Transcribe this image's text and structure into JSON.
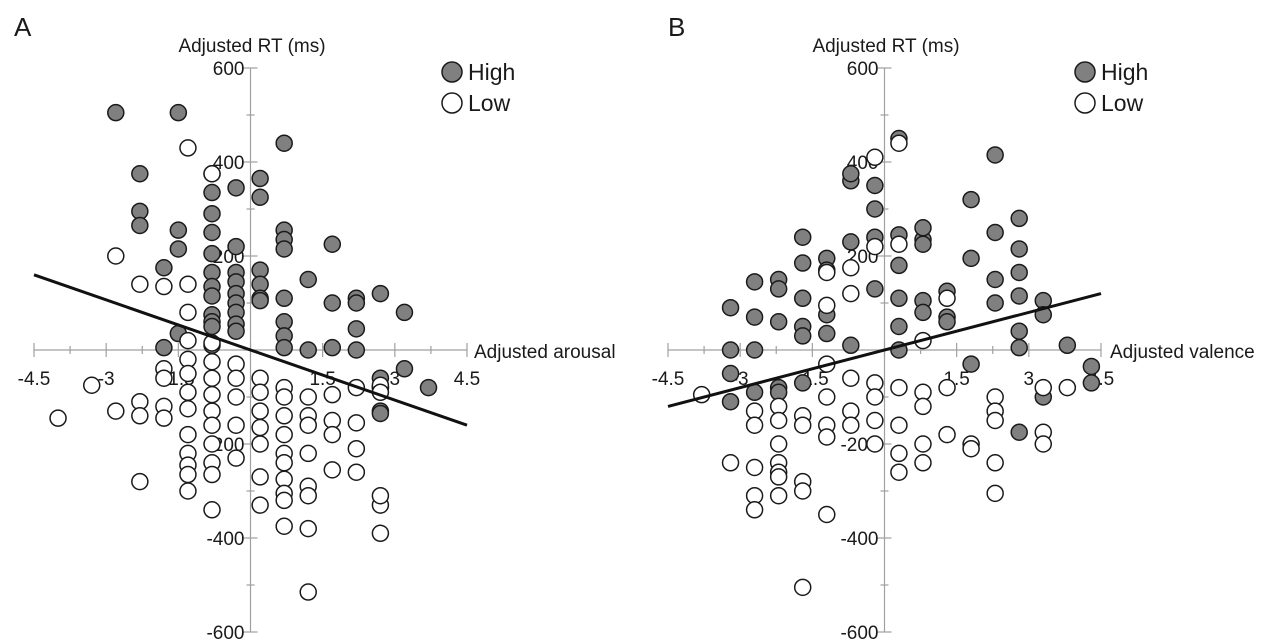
{
  "chart_data": [
    {
      "type": "scatter",
      "panel_label": "A",
      "title": "",
      "xlabel": "Adjusted arousal",
      "ylabel": "Adjusted RT (ms)",
      "xlim": [
        -4.5,
        4.5
      ],
      "ylim": [
        -600,
        600
      ],
      "x_ticks": [
        -4.5,
        -3,
        -1.5,
        0,
        1.5,
        3,
        4.5
      ],
      "x_tick_labels": [
        "-4.5",
        "-3",
        "-1.5",
        "",
        "1.5",
        "3",
        "4.5"
      ],
      "y_ticks": [
        -600,
        -400,
        -200,
        0,
        200,
        400,
        600
      ],
      "y_tick_labels": [
        "-600",
        "-400",
        "-200",
        "",
        "200",
        "400",
        "600"
      ],
      "grid": false,
      "legend_placement": "top-right",
      "colors": {
        "High": "#808080",
        "Low": "#ffffff"
      },
      "series": [
        {
          "name": "High",
          "x": [
            -2.8,
            -2.3,
            -2.3,
            -2.3,
            -1.8,
            -1.8,
            -1.5,
            -1.5,
            -1.5,
            -1.5,
            -0.8,
            -0.8,
            -0.8,
            -0.8,
            -0.8,
            -0.8,
            -0.8,
            -0.8,
            -0.8,
            -0.8,
            -0.8,
            -0.8,
            -0.3,
            -0.3,
            -0.3,
            -0.3,
            -0.3,
            -0.3,
            -0.3,
            -0.3,
            -0.3,
            0.2,
            0.2,
            0.2,
            0.2,
            0.2,
            0.2,
            0.7,
            0.7,
            0.7,
            0.7,
            0.7,
            0.7,
            0.7,
            0.7,
            1.2,
            1.2,
            1.7,
            1.7,
            1.7,
            2.2,
            2.2,
            2.2,
            2.2,
            2.7,
            2.7,
            2.7,
            2.7,
            2.7,
            2.7,
            3.2,
            3.2,
            3.7
          ],
          "y": [
            505,
            375,
            295,
            265,
            175,
            5,
            505,
            255,
            215,
            35,
            375,
            335,
            290,
            250,
            205,
            165,
            135,
            115,
            75,
            60,
            50,
            10,
            345,
            220,
            165,
            145,
            120,
            100,
            80,
            55,
            40,
            365,
            325,
            170,
            140,
            110,
            105,
            440,
            255,
            235,
            215,
            110,
            60,
            30,
            5,
            150,
            0,
            225,
            100,
            5,
            110,
            100,
            45,
            0,
            120,
            -60,
            -80,
            -80,
            -130,
            -135,
            80,
            -40,
            -80
          ],
          "marker": "filled circle"
        },
        {
          "name": "Low",
          "x": [
            -4.0,
            -3.3,
            -2.8,
            -2.8,
            -2.3,
            -2.3,
            -2.3,
            -2.3,
            -1.8,
            -1.8,
            -1.8,
            -1.8,
            -1.8,
            -1.3,
            -1.3,
            -1.3,
            -1.3,
            -1.3,
            -1.3,
            -1.3,
            -1.3,
            -1.3,
            -1.3,
            -1.3,
            -1.3,
            -1.3,
            -0.8,
            -0.8,
            -0.8,
            -0.8,
            -0.8,
            -0.8,
            -0.8,
            -0.8,
            -0.8,
            -0.8,
            -0.8,
            -0.3,
            -0.3,
            -0.3,
            -0.3,
            -0.3,
            0.2,
            0.2,
            0.2,
            0.2,
            0.2,
            0.2,
            0.2,
            0.7,
            0.7,
            0.7,
            0.7,
            0.7,
            0.7,
            0.7,
            0.7,
            0.7,
            0.7,
            1.2,
            1.2,
            1.2,
            1.2,
            1.2,
            1.2,
            1.2,
            1.2,
            1.7,
            1.7,
            1.7,
            1.7,
            2.2,
            2.2,
            2.2,
            2.2,
            2.7,
            2.7,
            2.7,
            2.7,
            2.7
          ],
          "y": [
            -145,
            -75,
            200,
            -130,
            140,
            -110,
            -140,
            -280,
            135,
            -40,
            -60,
            -120,
            -145,
            430,
            140,
            80,
            20,
            -20,
            -50,
            -90,
            -125,
            -180,
            -220,
            -245,
            -265,
            -300,
            375,
            15,
            -25,
            -60,
            -95,
            -130,
            -160,
            -200,
            -240,
            -265,
            -340,
            -30,
            -60,
            -100,
            -160,
            -230,
            -60,
            -90,
            -130,
            -165,
            -200,
            -270,
            -330,
            -80,
            -100,
            -140,
            -180,
            -220,
            -240,
            -275,
            -305,
            -320,
            -375,
            -100,
            -140,
            -160,
            -220,
            -290,
            -310,
            -380,
            -515,
            -95,
            -150,
            -180,
            -255,
            -80,
            -155,
            -210,
            -260,
            -75,
            -90,
            -330,
            -310,
            -390
          ],
          "marker": "open circle"
        },
        {
          "name": "",
          "type": "line",
          "x": [
            -4.5,
            4.5
          ],
          "y": [
            160,
            -160
          ]
        }
      ]
    },
    {
      "type": "scatter",
      "panel_label": "B",
      "title": "",
      "xlabel": "Adjusted valence",
      "ylabel": "Adjusted RT (ms)",
      "xlim": [
        -4.5,
        4.5
      ],
      "ylim": [
        -600,
        600
      ],
      "x_ticks": [
        -4.5,
        -3,
        -1.5,
        0,
        1.5,
        3,
        4.5
      ],
      "x_tick_labels": [
        "-4.5",
        "-3",
        "-1.5",
        "",
        "1.5",
        "3",
        "4.5"
      ],
      "y_ticks": [
        -600,
        -400,
        -200,
        0,
        200,
        400,
        600
      ],
      "y_tick_labels": [
        "-600",
        "-400",
        "-200",
        "",
        "200",
        "400",
        "600"
      ],
      "grid": false,
      "legend_placement": "top-right",
      "colors": {
        "High": "#808080",
        "Low": "#ffffff"
      },
      "series": [
        {
          "name": "High",
          "x": [
            -3.2,
            -3.2,
            -3.2,
            -3.2,
            -2.7,
            -2.7,
            -2.7,
            -2.7,
            -2.2,
            -2.2,
            -2.2,
            -2.2,
            -2.2,
            -1.7,
            -1.7,
            -1.7,
            -1.7,
            -1.7,
            -1.7,
            -1.2,
            -1.2,
            -1.2,
            -1.2,
            -0.7,
            -0.7,
            -0.7,
            -0.7,
            -0.2,
            -0.2,
            -0.2,
            -0.2,
            0.3,
            0.3,
            0.3,
            0.3,
            0.3,
            0.3,
            0.8,
            0.8,
            0.8,
            0.8,
            0.8,
            1.3,
            1.3,
            1.3,
            1.8,
            1.8,
            1.8,
            2.3,
            2.3,
            2.3,
            2.3,
            2.8,
            2.8,
            2.8,
            2.8,
            2.8,
            2.8,
            2.8,
            3.3,
            3.3,
            3.3,
            3.8,
            4.3,
            4.3
          ],
          "y": [
            90,
            0,
            -50,
            -110,
            145,
            70,
            0,
            -90,
            150,
            130,
            60,
            -80,
            -90,
            240,
            185,
            110,
            50,
            30,
            -70,
            195,
            170,
            75,
            35,
            360,
            375,
            230,
            10,
            350,
            300,
            240,
            130,
            450,
            245,
            180,
            110,
            50,
            0,
            235,
            225,
            105,
            80,
            260,
            125,
            70,
            60,
            320,
            195,
            -30,
            415,
            250,
            150,
            100,
            40,
            5,
            -175,
            280,
            215,
            115,
            165,
            105,
            75,
            -100,
            10,
            -35,
            -70
          ],
          "marker": "filled circle"
        },
        {
          "name": "Low",
          "x": [
            -3.8,
            -3.2,
            -2.7,
            -2.7,
            -2.7,
            -2.7,
            -2.7,
            -2.2,
            -2.2,
            -2.2,
            -2.2,
            -2.2,
            -2.2,
            -2.2,
            -1.7,
            -1.7,
            -1.7,
            -1.7,
            -1.7,
            -1.2,
            -1.2,
            -1.2,
            -1.2,
            -1.2,
            -1.2,
            -1.2,
            -0.7,
            -0.7,
            -0.7,
            -0.7,
            -0.7,
            -0.2,
            -0.2,
            -0.2,
            -0.2,
            -0.2,
            -0.2,
            0.3,
            0.3,
            0.3,
            0.3,
            0.3,
            0.3,
            0.8,
            0.8,
            0.8,
            0.8,
            0.8,
            1.3,
            1.3,
            1.3,
            1.8,
            1.8,
            2.3,
            2.3,
            2.3,
            2.3,
            2.3,
            3.3,
            3.3,
            3.3,
            3.8
          ],
          "y": [
            -95,
            -240,
            -130,
            -160,
            -250,
            -310,
            -340,
            -120,
            -150,
            -200,
            -240,
            -260,
            -270,
            -310,
            -140,
            -160,
            -280,
            -300,
            -505,
            165,
            95,
            -30,
            -100,
            -160,
            -185,
            -350,
            175,
            120,
            -60,
            -130,
            -160,
            410,
            220,
            -70,
            -100,
            -150,
            -200,
            440,
            225,
            -80,
            -160,
            -220,
            -260,
            20,
            -90,
            -120,
            -200,
            -240,
            110,
            -80,
            -180,
            -200,
            -210,
            -100,
            -130,
            -150,
            -240,
            -305,
            -80,
            -175,
            -200,
            -80
          ],
          "marker": "open circle"
        },
        {
          "name": "",
          "type": "line",
          "x": [
            -4.5,
            4.5
          ],
          "y": [
            -120,
            120
          ]
        }
      ]
    }
  ]
}
